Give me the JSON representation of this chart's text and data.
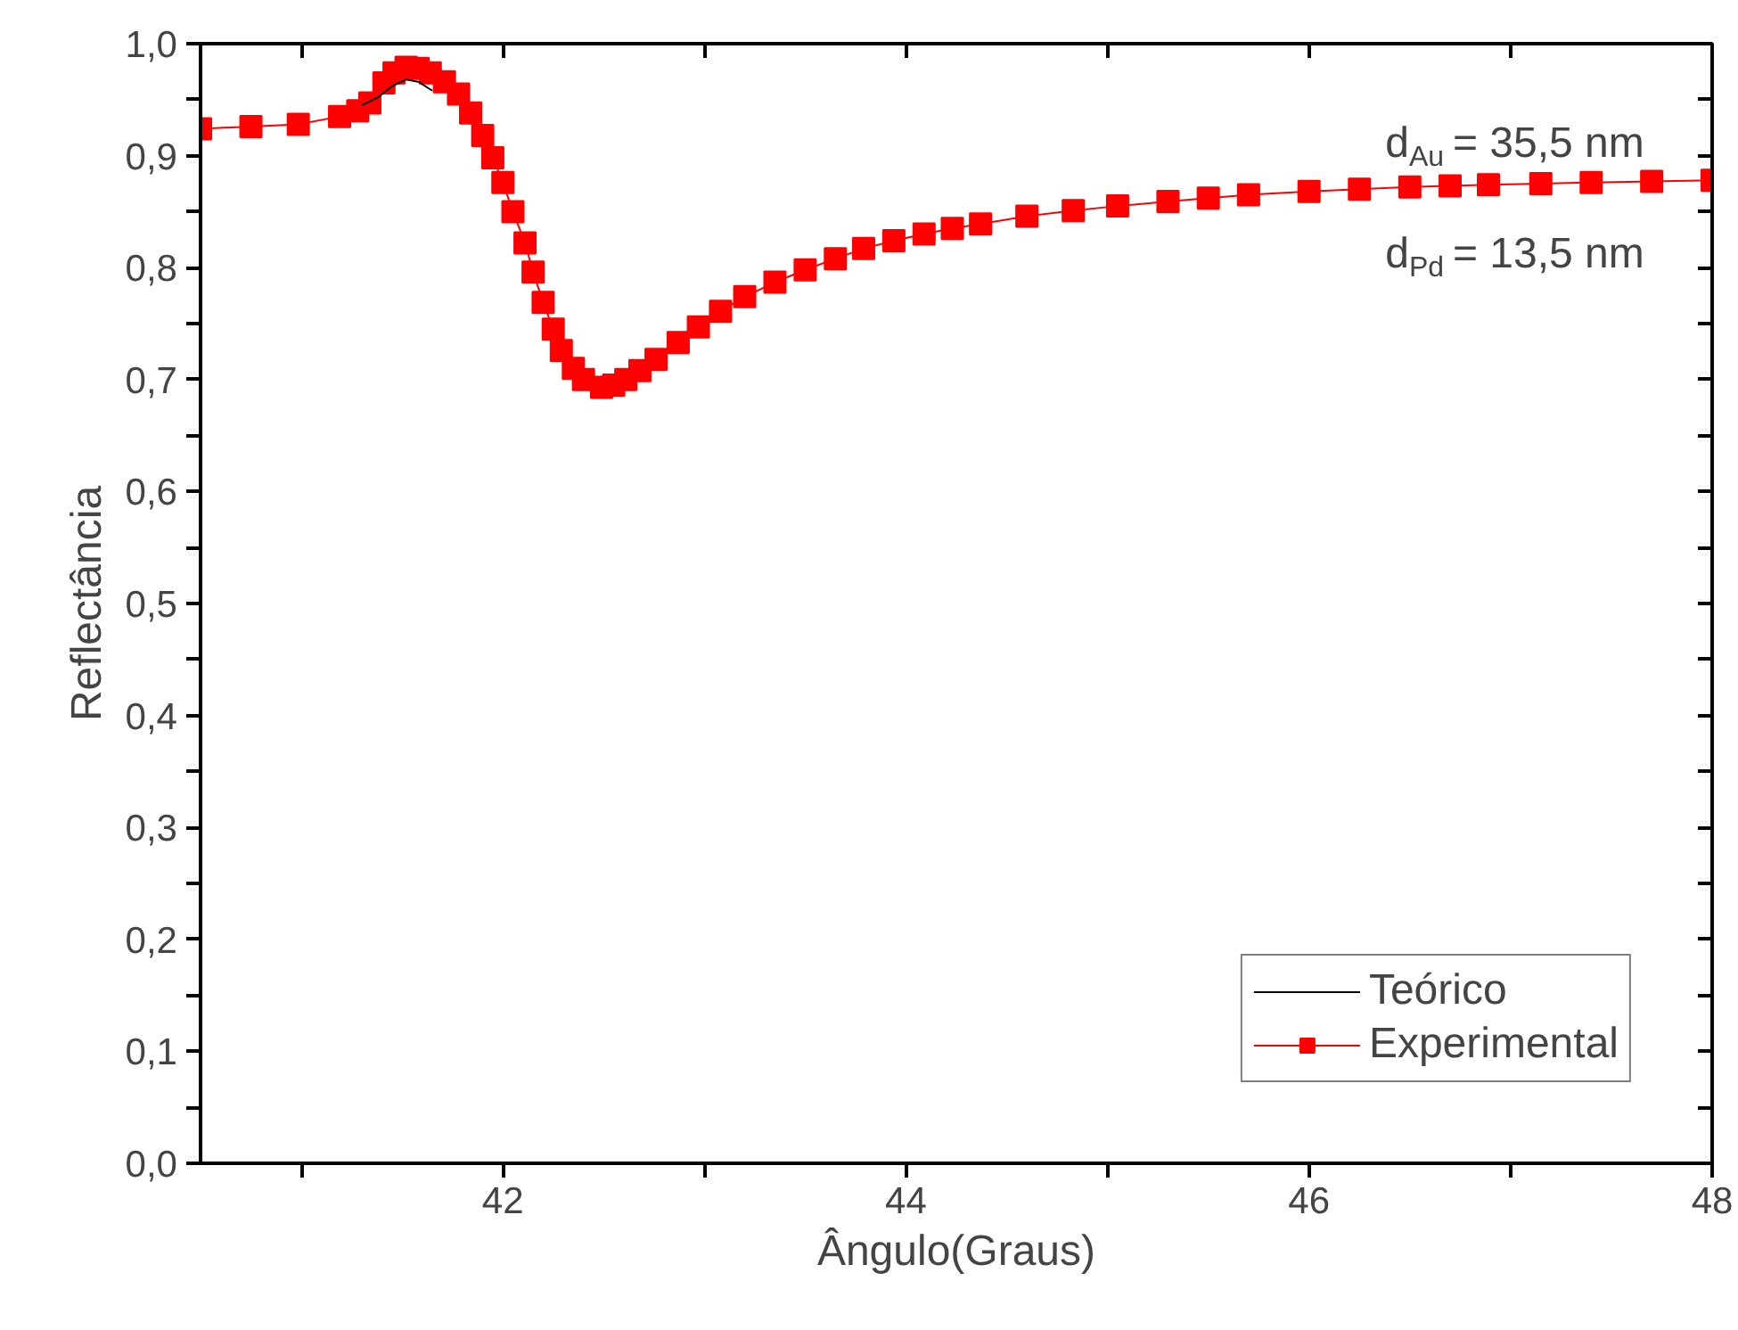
{
  "chart_data": {
    "type": "line",
    "xlabel": "Ângulo(Graus)",
    "ylabel": "Reflectância",
    "xlim": [
      40.5,
      48
    ],
    "ylim": [
      0,
      1
    ],
    "xticks": [
      {
        "value": 41,
        "label": null
      },
      42,
      {
        "value": 43,
        "label": null
      },
      44,
      {
        "value": 45,
        "label": null
      },
      46,
      {
        "value": 47,
        "label": null
      },
      48
    ],
    "yticks": [
      {
        "value": 0,
        "label": "0,0"
      },
      {
        "value": 0.05,
        "label": null
      },
      {
        "value": 0.1,
        "label": "0,1"
      },
      {
        "value": 0.15,
        "label": null
      },
      {
        "value": 0.2,
        "label": "0,2"
      },
      {
        "value": 0.25,
        "label": null
      },
      {
        "value": 0.3,
        "label": "0,3"
      },
      {
        "value": 0.35,
        "label": null
      },
      {
        "value": 0.4,
        "label": "0,4"
      },
      {
        "value": 0.45,
        "label": null
      },
      {
        "value": 0.5,
        "label": "0,5"
      },
      {
        "value": 0.55,
        "label": null
      },
      {
        "value": 0.6,
        "label": "0,6"
      },
      {
        "value": 0.65,
        "label": null
      },
      {
        "value": 0.7,
        "label": "0,7"
      },
      {
        "value": 0.75,
        "label": null
      },
      {
        "value": 0.8,
        "label": "0,8"
      },
      {
        "value": 0.85,
        "label": null
      },
      {
        "value": 0.9,
        "label": "0,9"
      },
      {
        "value": 0.95,
        "label": null
      },
      {
        "value": 1.0,
        "label": "1,0"
      }
    ],
    "grid": false,
    "legend": "bottom right",
    "annotations": [
      "d$_{Au}$ = 35,5 nm",
      "d$_{Pd}$ = 13,5 nm"
    ],
    "series": [
      {
        "name": "Experimental",
        "color": "#ff0000",
        "marker": "square",
        "x": [
          40.5,
          40.75,
          40.985,
          41.19,
          41.28,
          41.34,
          41.41,
          41.46,
          41.52,
          41.58,
          41.64,
          41.71,
          41.78,
          41.84,
          41.9,
          41.95,
          42.0,
          42.05,
          42.11,
          42.15,
          42.2,
          42.25,
          42.29,
          42.35,
          42.4,
          42.49,
          42.55,
          42.61,
          42.68,
          42.76,
          42.87,
          42.97,
          43.08,
          43.2,
          43.35,
          43.5,
          43.65,
          43.79,
          43.94,
          44.09,
          44.23,
          44.37,
          44.6,
          44.83,
          45.05,
          45.3,
          45.5,
          45.7,
          46.0,
          46.25,
          46.5,
          46.7,
          46.89,
          47.15,
          47.4,
          47.7,
          48.0
        ],
        "values": [
          0.924,
          0.926,
          0.928,
          0.935,
          0.94,
          0.947,
          0.965,
          0.974,
          0.979,
          0.978,
          0.974,
          0.966,
          0.955,
          0.938,
          0.918,
          0.898,
          0.876,
          0.85,
          0.822,
          0.796,
          0.769,
          0.745,
          0.726,
          0.71,
          0.7,
          0.693,
          0.695,
          0.7,
          0.708,
          0.718,
          0.733,
          0.747,
          0.761,
          0.774,
          0.787,
          0.798,
          0.808,
          0.817,
          0.824,
          0.83,
          0.835,
          0.839,
          0.846,
          0.851,
          0.855,
          0.859,
          0.862,
          0.865,
          0.868,
          0.87,
          0.872,
          0.873,
          0.874,
          0.875,
          0.876,
          0.877,
          0.878
        ]
      },
      {
        "name": "Teórico",
        "color": "#000000",
        "marker": "none",
        "x": [
          41.3,
          41.38,
          41.45,
          41.52,
          41.58,
          41.65
        ],
        "values": [
          0.945,
          0.952,
          0.962,
          0.968,
          0.966,
          0.958
        ]
      }
    ]
  }
}
